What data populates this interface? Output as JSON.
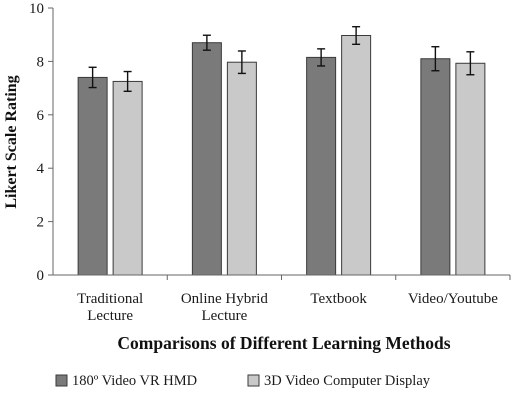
{
  "chart_data": {
    "type": "bar",
    "categories": [
      [
        "Traditional",
        "Lecture"
      ],
      [
        "Online Hybrid",
        "Lecture"
      ],
      [
        "Textbook"
      ],
      [
        "Video/Youtube"
      ]
    ],
    "series": [
      {
        "name": "180º Video VR HMD",
        "color": "#7a7a7a",
        "values": [
          7.4,
          8.7,
          8.15,
          8.1
        ],
        "errors": [
          0.38,
          0.28,
          0.32,
          0.45
        ]
      },
      {
        "name": "3D Video Computer Display",
        "color": "#c9c9c9",
        "values": [
          7.25,
          7.97,
          8.97,
          7.93
        ],
        "errors": [
          0.37,
          0.42,
          0.33,
          0.43
        ]
      }
    ],
    "xlabel": "Comparisons of Different Learning Methods",
    "ylabel": "Likert Scale Rating",
    "ylim": [
      0,
      10
    ],
    "yticks": [
      "0",
      "2",
      "4",
      "6",
      "8",
      "10"
    ],
    "legend_position": "bottom",
    "grid": false
  }
}
